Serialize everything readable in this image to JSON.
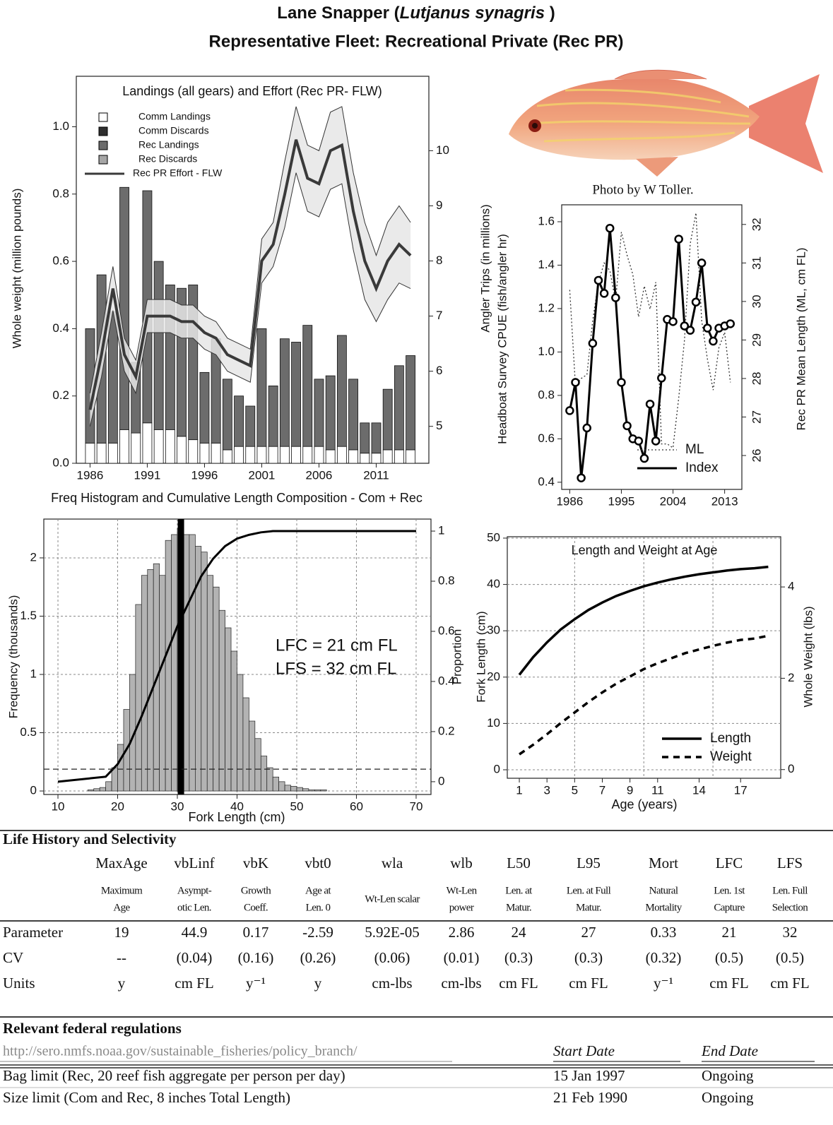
{
  "header": {
    "title_prefix": "Lane Snapper (",
    "title_italic": "Lutjanus synagris",
    "title_suffix": " )",
    "subtitle": "Representative Fleet:  Recreational Private (Rec PR)"
  },
  "photo_credit": "Photo by W Toller.",
  "chart_data": [
    {
      "type": "bar",
      "stacked": true,
      "title": "Landings (all gears) and Effort (Rec PR- FLW)",
      "y_label": "Whole weight (million pounds)",
      "y2_label": "Angler Trips (in millions)",
      "x": [
        1986,
        1987,
        1988,
        1989,
        1990,
        1991,
        1992,
        1993,
        1994,
        1995,
        1996,
        1997,
        1998,
        1999,
        2000,
        2001,
        2002,
        2003,
        2004,
        2005,
        2006,
        2007,
        2008,
        2009,
        2010,
        2011,
        2012,
        2013,
        2014
      ],
      "xlim": [
        1984.8,
        2015.6
      ],
      "xticks": [
        1986,
        1991,
        1996,
        2001,
        2006,
        2011
      ],
      "ylim": [
        0,
        1.15
      ],
      "yticks": [
        {
          "value": 0,
          "label": "0.0"
        },
        0.2,
        0.4,
        0.6,
        0.8,
        {
          "value": 1,
          "label": "1.0"
        }
      ],
      "y2lim": [
        4.33,
        11.35
      ],
      "y2ticks": [
        5,
        6,
        7,
        8,
        9,
        10
      ],
      "legend": "upper left",
      "series": [
        {
          "name": "Comm Landings",
          "color": "#ffffff",
          "values": [
            0.06,
            0.06,
            0.06,
            0.1,
            0.09,
            0.12,
            0.1,
            0.1,
            0.08,
            0.07,
            0.06,
            0.06,
            0.04,
            0.05,
            0.05,
            0.05,
            0.05,
            0.05,
            0.05,
            0.05,
            0.05,
            0.04,
            0.05,
            0.04,
            0.03,
            0.03,
            0.04,
            0.04,
            0.04
          ]
        },
        {
          "name": "Comm Discards",
          "color": "#2e2e2e",
          "values": [
            0,
            0,
            0,
            0,
            0,
            0,
            0,
            0,
            0,
            0,
            0,
            0,
            0,
            0,
            0,
            0,
            0,
            0,
            0,
            0,
            0,
            0,
            0,
            0,
            0,
            0,
            0,
            0,
            0
          ]
        },
        {
          "name": "Rec Landings",
          "color": "#6c6c6c",
          "values": [
            0.34,
            0.5,
            0.39,
            0.72,
            0.21,
            0.69,
            0.5,
            0.43,
            0.44,
            0.46,
            0.21,
            0.31,
            0.21,
            0.15,
            0.12,
            0.35,
            0.18,
            0.32,
            0.31,
            0.36,
            0.2,
            0.22,
            0.33,
            0.21,
            0.09,
            0.09,
            0.18,
            0.25,
            0.28
          ]
        },
        {
          "name": "Rec Discards",
          "color": "#a6a6a6",
          "values": [
            0,
            0,
            0,
            0,
            0,
            0,
            0,
            0,
            0,
            0,
            0,
            0,
            0,
            0,
            0,
            0,
            0,
            0,
            0,
            0,
            0,
            0,
            0,
            0,
            0,
            0,
            0,
            0,
            0
          ]
        },
        {
          "name": "Rec PR Effort - FLW",
          "color": "#3a3a3a",
          "axis": "y2",
          "values": [
            5.3,
            6.3,
            7.5,
            6.3,
            5.9,
            7.0,
            7.0,
            7.0,
            6.9,
            6.9,
            6.7,
            6.6,
            6.3,
            6.2,
            6.1,
            8.0,
            8.3,
            9.2,
            10.2,
            9.5,
            9.4,
            10.0,
            10.1,
            8.9,
            8.0,
            7.5,
            8.0,
            8.3,
            8.1
          ],
          "lower": [
            5.0,
            5.9,
            7.1,
            6.0,
            5.6,
            6.7,
            6.7,
            6.7,
            6.6,
            6.6,
            6.4,
            6.3,
            6.0,
            5.9,
            5.8,
            7.6,
            7.9,
            8.6,
            9.6,
            8.9,
            8.8,
            9.3,
            9.4,
            8.2,
            7.3,
            6.9,
            7.3,
            7.6,
            7.5
          ],
          "upper": [
            5.6,
            6.7,
            7.9,
            6.6,
            6.2,
            7.3,
            7.3,
            7.3,
            7.2,
            7.2,
            7.0,
            6.9,
            6.6,
            6.5,
            6.4,
            8.4,
            8.7,
            9.8,
            10.8,
            10.1,
            10.0,
            10.7,
            10.8,
            9.6,
            8.7,
            8.1,
            8.7,
            9.0,
            8.7
          ]
        }
      ]
    },
    {
      "type": "line",
      "y_label": "Headboat Survey CPUE (fish/angler hr)",
      "y2_label": "Rec PR Mean Length (ML, cm FL)",
      "x": [
        1986,
        1987,
        1988,
        1989,
        1990,
        1991,
        1992,
        1993,
        1994,
        1995,
        1996,
        1997,
        1998,
        1999,
        2000,
        2001,
        2002,
        2003,
        2004,
        2005,
        2006,
        2007,
        2008,
        2009,
        2010,
        2011,
        2012,
        2013,
        2014
      ],
      "xlim": [
        1984.6,
        2016
      ],
      "xticks": [
        1986,
        1995,
        2004,
        2013
      ],
      "ylim": [
        0.367,
        1.678
      ],
      "yticks": [
        0.4,
        0.6,
        0.8,
        {
          "value": 1,
          "label": "1.0"
        },
        1.2,
        1.4,
        1.6
      ],
      "y2lim": [
        25.12,
        32.51
      ],
      "y2ticks": [
        26,
        27,
        28,
        29,
        30,
        31,
        32
      ],
      "legend": "lower right",
      "series": [
        {
          "name": "ML",
          "color": "#333333",
          "axis": "y2",
          "dash": "dotted",
          "values": [
            30.3,
            27.8,
            28.0,
            28.1,
            29.5,
            30.5,
            31.0,
            30.8,
            30.0,
            31.8,
            31.2,
            30.7,
            29.6,
            30.4,
            29.8,
            30.5,
            26.3,
            26.3,
            26.2,
            27.5,
            29.0,
            31.5,
            32.3,
            29.5,
            28.5,
            27.7,
            28.8,
            29.2,
            27.9
          ]
        },
        {
          "name": "Index",
          "color": "#000000",
          "marker": "circle",
          "values": [
            0.73,
            0.86,
            0.42,
            0.65,
            1.04,
            1.33,
            1.27,
            1.57,
            1.25,
            0.86,
            0.66,
            0.6,
            0.59,
            0.51,
            0.76,
            0.59,
            0.88,
            1.15,
            1.14,
            1.52,
            1.12,
            1.1,
            1.23,
            1.41,
            1.11,
            1.05,
            1.11,
            1.12,
            1.13
          ]
        }
      ]
    },
    {
      "type": "histogram",
      "title": "Freq Histogram and Cumulative Length Composition - Com + Rec",
      "x_label": "Fork Length (cm)",
      "y_label": "Frequency (thousands)",
      "y2_label": "Proportion",
      "color": "#b3b3b3",
      "grid": true,
      "bins": [
        15,
        16,
        17,
        18,
        19,
        20,
        21,
        22,
        23,
        24,
        25,
        26,
        27,
        28,
        29,
        30,
        31,
        32,
        33,
        34,
        35,
        36,
        37,
        38,
        39,
        40,
        41,
        42,
        43,
        44,
        45,
        46,
        47,
        48,
        49,
        50,
        51,
        52,
        53,
        54,
        55
      ],
      "values": [
        0.01,
        0.02,
        0.03,
        0.08,
        0.2,
        0.4,
        0.7,
        1.0,
        1.6,
        1.85,
        1.9,
        1.95,
        1.85,
        2.15,
        2.2,
        2.25,
        2.2,
        2.2,
        2.1,
        2.05,
        1.85,
        1.75,
        1.55,
        1.4,
        1.2,
        1.0,
        0.8,
        0.6,
        0.45,
        0.3,
        0.2,
        0.12,
        0.08,
        0.05,
        0.04,
        0.03,
        0.02,
        0.01,
        0.01,
        0.01
      ],
      "cumulative": {
        "axis": "y2",
        "x": [
          10,
          18,
          20,
          22,
          24,
          26,
          28,
          30,
          32,
          34,
          36,
          38,
          40,
          42,
          44,
          46,
          50,
          60,
          70
        ],
        "values": [
          0,
          0.02,
          0.07,
          0.15,
          0.26,
          0.38,
          0.5,
          0.62,
          0.72,
          0.82,
          0.89,
          0.94,
          0.97,
          0.985,
          0.995,
          1,
          1,
          1,
          1
        ]
      },
      "mean_line_x": 30.6,
      "reference_y2": 0.05,
      "annotations": [
        "LFC = 21 cm FL",
        "LFS = 32 cm FL"
      ],
      "xlim": [
        7.63,
        72.49
      ],
      "xticks": [
        10,
        20,
        30,
        40,
        50,
        60,
        70
      ],
      "ylim": [
        -0.03,
        2.333
      ],
      "yticks": [
        0,
        0.5,
        1,
        1.5,
        2
      ],
      "y2lim": [
        -0.051,
        1.048
      ],
      "y2ticks": [
        0,
        0.2,
        0.4,
        0.6,
        0.8,
        1
      ]
    },
    {
      "type": "line",
      "title": "Length and Weight at Age",
      "x_label": "Age (years)",
      "y_label": "Fork Length (cm)",
      "y2_label": "Whole Weight (lbs)",
      "grid": true,
      "legend": "lower right",
      "x": [
        1,
        2,
        3,
        4,
        5,
        6,
        7,
        8,
        9,
        10,
        11,
        12,
        13,
        14,
        15,
        16,
        17,
        18,
        19
      ],
      "xlim": [
        0.13,
        19.9
      ],
      "xticks": [
        1,
        3,
        5,
        7,
        9,
        11,
        14,
        17
      ],
      "xgrid": [
        5,
        10,
        15
      ],
      "ylim": [
        -1.83,
        50.3
      ],
      "yticks": [
        0,
        10,
        20,
        30,
        40,
        50
      ],
      "y2lim": [
        -0.19,
        5.1
      ],
      "y2ticks": [
        0,
        2,
        4
      ],
      "series": [
        {
          "name": "Length",
          "color": "#000000",
          "values": [
            20.5,
            24.3,
            27.5,
            30.3,
            32.5,
            34.5,
            36.1,
            37.5,
            38.6,
            39.6,
            40.4,
            41.1,
            41.7,
            42.2,
            42.6,
            43.0,
            43.3,
            43.5,
            43.8
          ]
        },
        {
          "name": "Weight",
          "color": "#000000",
          "axis": "y2",
          "dash": "dashed",
          "values": [
            0.334,
            0.543,
            0.774,
            1.02,
            1.25,
            1.48,
            1.69,
            1.88,
            2.04,
            2.2,
            2.33,
            2.44,
            2.55,
            2.63,
            2.71,
            2.78,
            2.84,
            2.87,
            2.93
          ]
        }
      ]
    }
  ],
  "life_history": {
    "title": "Life History and Selectivity",
    "columns": [
      {
        "name": "MaxAge",
        "description": [
          "Maximum",
          "Age"
        ]
      },
      {
        "name": "vbLinf",
        "description": [
          "Asympt-",
          "otic Len."
        ]
      },
      {
        "name": "vbK",
        "description": [
          "Growth",
          "Coeff."
        ]
      },
      {
        "name": "vbt0",
        "description": [
          "Age at",
          "Len. 0"
        ]
      },
      {
        "name": "wla",
        "description": [
          "Wt-Len scalar"
        ]
      },
      {
        "name": "wlb",
        "description": [
          "Wt-Len",
          "power"
        ]
      },
      {
        "name": "L50",
        "description": [
          "Len. at",
          "Matur."
        ]
      },
      {
        "name": "L95",
        "description": [
          "Len. at Full",
          "Matur."
        ]
      },
      {
        "name": "Mort",
        "description": [
          "Natural",
          "Mortality"
        ]
      },
      {
        "name": "LFC",
        "description": [
          "Len. 1st",
          "Capture"
        ]
      },
      {
        "name": "LFS",
        "description": [
          "Len. Full",
          "Selection"
        ]
      }
    ],
    "rows": [
      {
        "label": "Parameter",
        "values": [
          "19",
          "44.9",
          "0.17",
          "-2.59",
          "5.92E-05",
          "2.86",
          "24",
          "27",
          "0.33",
          "21",
          "32"
        ]
      },
      {
        "label": "CV",
        "values": [
          "--",
          "(0.04)",
          "(0.16)",
          "(0.26)",
          "(0.06)",
          "(0.01)",
          "(0.3)",
          "(0.3)",
          "(0.32)",
          "(0.5)",
          "(0.5)"
        ]
      },
      {
        "label": "Units",
        "values": [
          "y",
          "cm FL",
          "y⁻¹",
          "y",
          "cm-lbs",
          "cm-lbs",
          "cm FL",
          "cm FL",
          "y⁻¹",
          "cm FL",
          "cm FL"
        ]
      }
    ]
  },
  "regulations": {
    "title": "Relevant federal regulations",
    "url": "http://sero.nmfs.noaa.gov/sustainable_fisheries/policy_branch/",
    "headers": [
      "Start Date",
      "End Date"
    ],
    "rows": [
      {
        "rule": "Bag limit (Rec, 20 reef fish aggregate per person per day)",
        "start": "15 Jan 1997",
        "end": "Ongoing"
      },
      {
        "rule": "Size limit (Com and Rec, 8 inches Total Length)",
        "start": "21  Feb 1990",
        "end": "Ongoing"
      }
    ]
  }
}
